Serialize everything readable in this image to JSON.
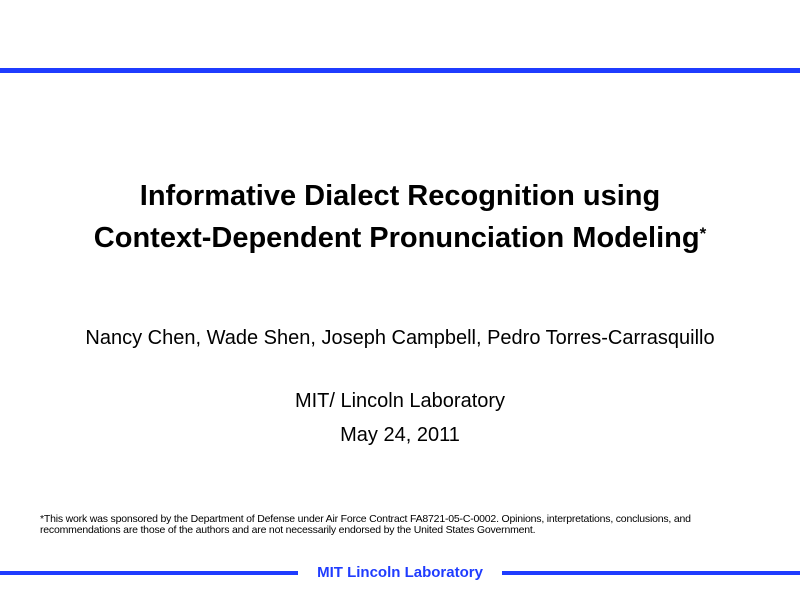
{
  "slide": {
    "title_line1": "Informative Dialect Recognition using",
    "title_line2": "Context-Dependent Pronunciation Modeling",
    "title_marker": "*",
    "authors": "Nancy Chen, Wade Shen, Joseph Campbell, Pedro Torres-Carrasquillo",
    "organization": "MIT/ Lincoln Laboratory",
    "date": "May 24, 2011",
    "footnote": "*This work was sponsored by the Department of Defense under Air Force Contract FA8721-05-C-0002. Opinions, interpretations, conclusions, and recommendations are those of the authors and are not necessarily endorsed by the United States Government.",
    "footer": "MIT Lincoln Laboratory"
  },
  "colors": {
    "accent": "#1f3cff"
  }
}
